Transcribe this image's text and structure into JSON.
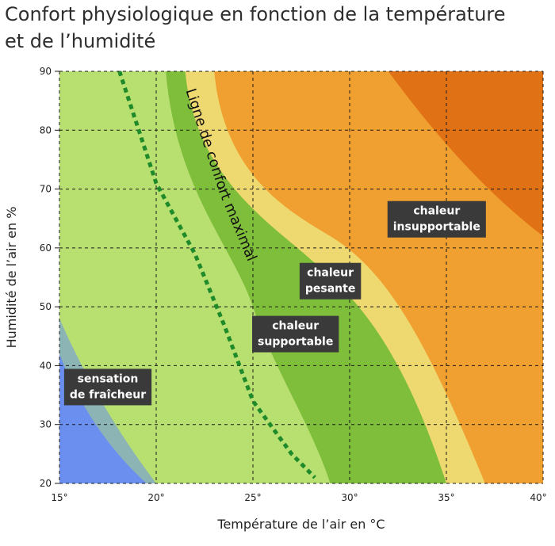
{
  "title_lines": [
    "Confort physiologique en fonction de la température",
    "et de l’humidité"
  ],
  "chart_data": {
    "type": "heatmap",
    "xlabel": "Température de l’air en °C",
    "ylabel": "Humidité de l’air en %",
    "xlim": [
      15,
      40
    ],
    "ylim": [
      20,
      90
    ],
    "x_ticks": [
      15,
      20,
      25,
      30,
      35,
      40
    ],
    "x_tick_labels": [
      "15°",
      "20°",
      "25°",
      "30°",
      "35°",
      "40°"
    ],
    "y_ticks": [
      20,
      30,
      40,
      50,
      60,
      70,
      80,
      90
    ],
    "y_tick_labels": [
      "20",
      "30",
      "40",
      "50",
      "60",
      "70",
      "80",
      "90"
    ],
    "grid": true,
    "colors": {
      "cool": "#6a8fef",
      "light_green": "#b8e070",
      "green": "#7fbe3a",
      "yellow": "#eed870",
      "orange": "#f0a030",
      "dark_orange": "#dd6a10",
      "comfort_line": "#1f8a2a",
      "label_box": "#3a3a3a"
    },
    "comfort_line": {
      "label": "Ligne de confort maximal",
      "points": [
        [
          18.1,
          90
        ],
        [
          20,
          71
        ],
        [
          22,
          59
        ],
        [
          23.5,
          47
        ],
        [
          25,
          34
        ],
        [
          27,
          25
        ],
        [
          28.2,
          21
        ]
      ]
    },
    "zones": [
      {
        "name": "cool",
        "label_lines": [
          "sensation",
          "de fraîcheur"
        ],
        "label_at": [
          17.5,
          36.5
        ]
      },
      {
        "name": "supportable",
        "label_lines": [
          "chaleur",
          "supportable"
        ],
        "label_at": [
          27.2,
          45.5
        ]
      },
      {
        "name": "pesante",
        "label_lines": [
          "chaleur",
          "pesante"
        ],
        "label_at": [
          29,
          54.5
        ]
      },
      {
        "name": "insupportable",
        "label_lines": [
          "chaleur",
          "insupportable"
        ],
        "label_at": [
          34.5,
          65
        ]
      }
    ]
  }
}
